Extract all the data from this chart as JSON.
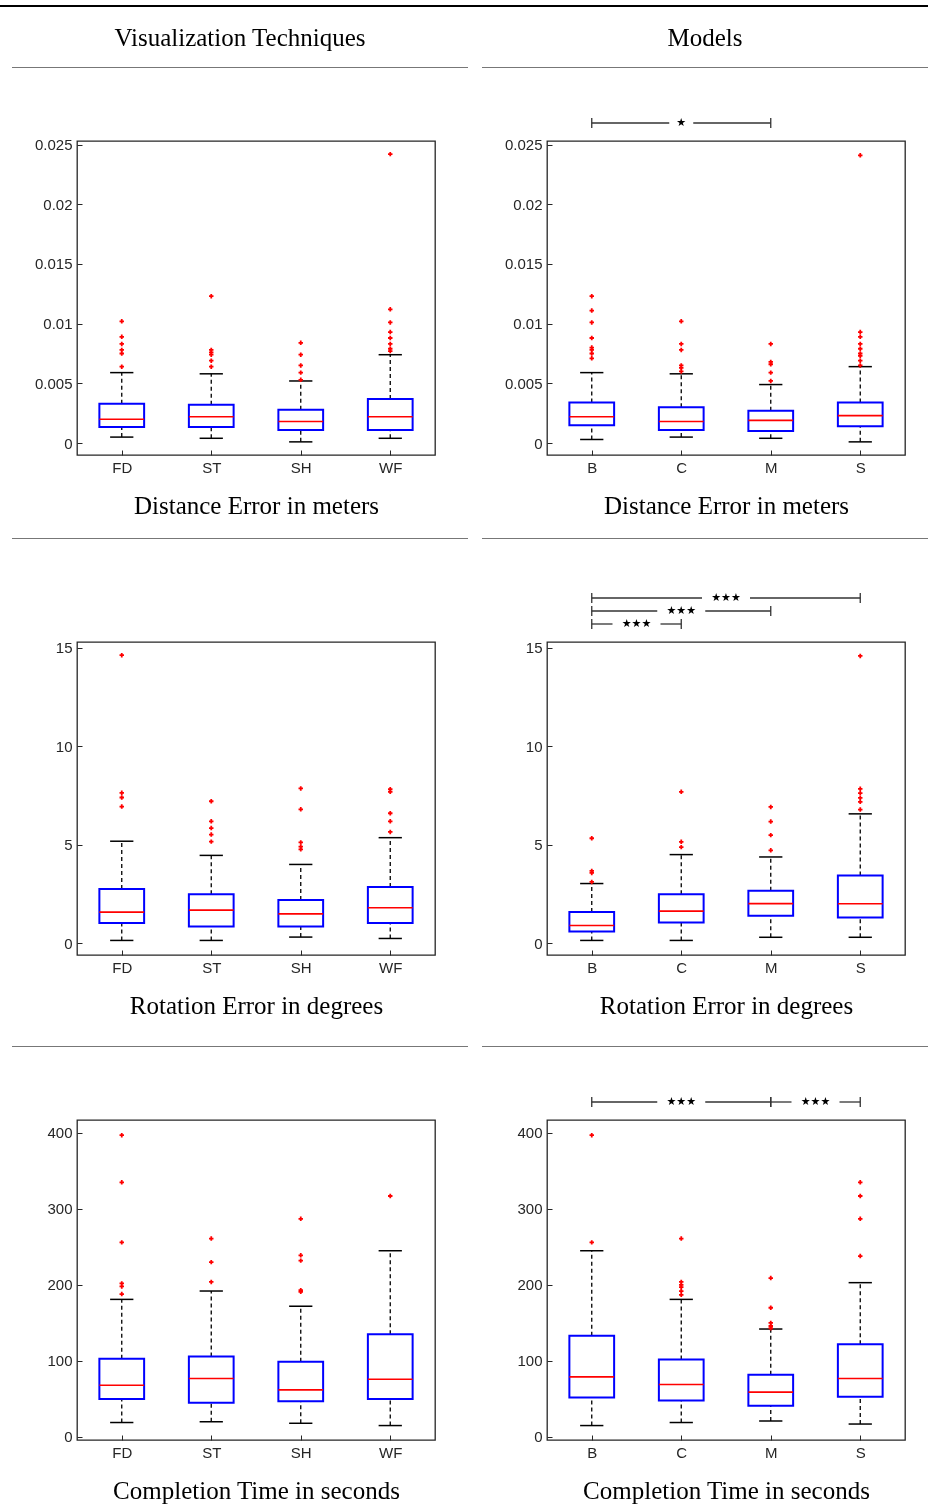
{
  "chart_data": [
    {
      "type": "box",
      "title": "Visualization Techniques",
      "xlabel": "Distance Error in meters",
      "categories": [
        "FD",
        "ST",
        "SH",
        "WF"
      ],
      "color": "#0000ff",
      "ylim": [
        -0.001,
        0.0253
      ],
      "yticks": [
        0,
        0.005,
        0.01,
        0.015,
        0.02,
        0.025
      ],
      "boxes": [
        {
          "low": 0.0005,
          "q1": 0.00135,
          "median": 0.002,
          "q3": 0.0033,
          "high": 0.0059,
          "outliers": [
            0.0102,
            0.0089,
            0.0083,
            0.0078,
            0.0075,
            0.0064
          ]
        },
        {
          "low": 0.0004,
          "q1": 0.00135,
          "median": 0.0022,
          "q3": 0.0032,
          "high": 0.0058,
          "outliers": [
            0.0123,
            0.0078,
            0.0076,
            0.0074,
            0.0069,
            0.0064
          ]
        },
        {
          "low": 0.0001,
          "q1": 0.0011,
          "median": 0.0018,
          "q3": 0.0028,
          "high": 0.0052,
          "outliers": [
            0.0084,
            0.0074,
            0.0065,
            0.0059,
            0.0053
          ]
        },
        {
          "low": 0.0004,
          "q1": 0.0011,
          "median": 0.0022,
          "q3": 0.0037,
          "high": 0.0074,
          "outliers": [
            0.0242,
            0.0112,
            0.0101,
            0.0093,
            0.0088,
            0.0083,
            0.0079,
            0.0077
          ]
        }
      ]
    },
    {
      "type": "box",
      "title": "Models",
      "xlabel": "Distance Error in meters",
      "categories": [
        "B",
        "C",
        "M",
        "S"
      ],
      "color": "#0000ff",
      "ylim": [
        -0.001,
        0.0253
      ],
      "yticks": [
        0,
        0.005,
        0.01,
        0.015,
        0.02,
        0.025
      ],
      "annotations": [
        "★"
      ],
      "boxes": [
        {
          "low": 0.0003,
          "q1": 0.0015,
          "median": 0.0022,
          "q3": 0.0034,
          "high": 0.0059,
          "outliers": [
            0.0123,
            0.0111,
            0.0101,
            0.0088,
            0.008,
            0.0078,
            0.0075,
            0.0071
          ]
        },
        {
          "low": 0.0005,
          "q1": 0.0011,
          "median": 0.0018,
          "q3": 0.003,
          "high": 0.0058,
          "outliers": [
            0.0102,
            0.0083,
            0.0078,
            0.0065,
            0.0063,
            0.006
          ]
        },
        {
          "low": 0.0004,
          "q1": 0.001,
          "median": 0.0019,
          "q3": 0.0027,
          "high": 0.0049,
          "outliers": [
            0.0083,
            0.0068,
            0.0066,
            0.0059,
            0.0052
          ]
        },
        {
          "low": 0.0001,
          "q1": 0.0014,
          "median": 0.0023,
          "q3": 0.0034,
          "high": 0.0064,
          "outliers": [
            0.0241,
            0.0093,
            0.0089,
            0.0083,
            0.0079,
            0.0075,
            0.0073,
            0.0069,
            0.0065
          ]
        }
      ]
    },
    {
      "type": "box",
      "xlabel": "Rotation Error in degrees",
      "categories": [
        "FD",
        "ST",
        "SH",
        "WF"
      ],
      "color": "#0000ff",
      "ylim": [
        -0.6,
        15.3
      ],
      "yticks": [
        0,
        5,
        10,
        15
      ],
      "boxes": [
        {
          "low": 0.14,
          "q1": 1.02,
          "median": 1.58,
          "q3": 2.75,
          "high": 5.18,
          "outliers": [
            14.63,
            7.64,
            7.4,
            6.94
          ]
        },
        {
          "low": 0.14,
          "q1": 0.85,
          "median": 1.68,
          "q3": 2.49,
          "high": 4.46,
          "outliers": [
            7.21,
            6.19,
            5.85,
            5.52,
            5.16
          ]
        },
        {
          "low": 0.31,
          "q1": 0.85,
          "median": 1.49,
          "q3": 2.19,
          "high": 4.0,
          "outliers": [
            7.86,
            6.8,
            5.12,
            4.9,
            4.77
          ]
        },
        {
          "low": 0.24,
          "q1": 1.02,
          "median": 1.8,
          "q3": 2.85,
          "high": 5.36,
          "outliers": [
            7.82,
            7.69,
            6.6,
            6.19,
            5.65
          ]
        }
      ]
    },
    {
      "type": "box",
      "xlabel": "Rotation Error in degrees",
      "categories": [
        "B",
        "C",
        "M",
        "S"
      ],
      "color": "#0000ff",
      "ylim": [
        -0.6,
        15.3
      ],
      "yticks": [
        0,
        5,
        10,
        15
      ],
      "annotations": [
        "★★★",
        "★★★",
        "★★★"
      ],
      "boxes": [
        {
          "low": 0.14,
          "q1": 0.59,
          "median": 0.9,
          "q3": 1.59,
          "high": 3.03,
          "outliers": [
            5.33,
            3.67,
            3.57,
            3.11
          ]
        },
        {
          "low": 0.14,
          "q1": 1.05,
          "median": 1.63,
          "q3": 2.49,
          "high": 4.5,
          "outliers": [
            7.69,
            5.15,
            4.88
          ]
        },
        {
          "low": 0.3,
          "q1": 1.39,
          "median": 2.01,
          "q3": 2.67,
          "high": 4.38,
          "outliers": [
            6.92,
            6.18,
            5.49,
            4.72
          ]
        },
        {
          "low": 0.3,
          "q1": 1.3,
          "median": 2.0,
          "q3": 3.44,
          "high": 6.57,
          "outliers": [
            14.59,
            7.84,
            7.62,
            7.38,
            7.18,
            6.79
          ]
        }
      ]
    },
    {
      "type": "box",
      "xlabel": "Completion Time in seconds",
      "categories": [
        "FD",
        "ST",
        "SH",
        "WF"
      ],
      "color": "#0000ff",
      "ylim": [
        -4,
        417
      ],
      "yticks": [
        0,
        100,
        200,
        300,
        400
      ],
      "boxes": [
        {
          "low": 19,
          "q1": 50,
          "median": 68,
          "q3": 103,
          "high": 181,
          "outliers": [
            397,
            335,
            256,
            202,
            198,
            188
          ]
        },
        {
          "low": 20,
          "q1": 45,
          "median": 77,
          "q3": 106,
          "high": 192,
          "outliers": [
            261,
            230,
            204
          ]
        },
        {
          "low": 18,
          "q1": 47,
          "median": 62,
          "q3": 99,
          "high": 172,
          "outliers": [
            287,
            239,
            232,
            193,
            191
          ]
        },
        {
          "low": 15,
          "q1": 50,
          "median": 76,
          "q3": 135,
          "high": 245,
          "outliers": [
            317
          ]
        }
      ]
    },
    {
      "type": "box",
      "xlabel": "Completion Time in seconds",
      "categories": [
        "B",
        "C",
        "M",
        "S"
      ],
      "color": "#0000ff",
      "ylim": [
        -4,
        417
      ],
      "yticks": [
        0,
        100,
        200,
        300,
        400
      ],
      "annotations": [
        "★★★",
        "★★★"
      ],
      "boxes": [
        {
          "low": 15,
          "q1": 52,
          "median": 79,
          "q3": 133,
          "high": 245,
          "outliers": [
            397,
            256
          ]
        },
        {
          "low": 19,
          "q1": 48,
          "median": 69,
          "q3": 102,
          "high": 181,
          "outliers": [
            261,
            204,
            200,
            197,
            192,
            187
          ]
        },
        {
          "low": 21,
          "q1": 41,
          "median": 59,
          "q3": 82,
          "high": 142,
          "outliers": [
            209,
            170,
            150,
            146,
            143
          ]
        },
        {
          "low": 17,
          "q1": 53,
          "median": 77,
          "q3": 122,
          "high": 203,
          "outliers": [
            335,
            317,
            287,
            238
          ]
        }
      ]
    }
  ]
}
